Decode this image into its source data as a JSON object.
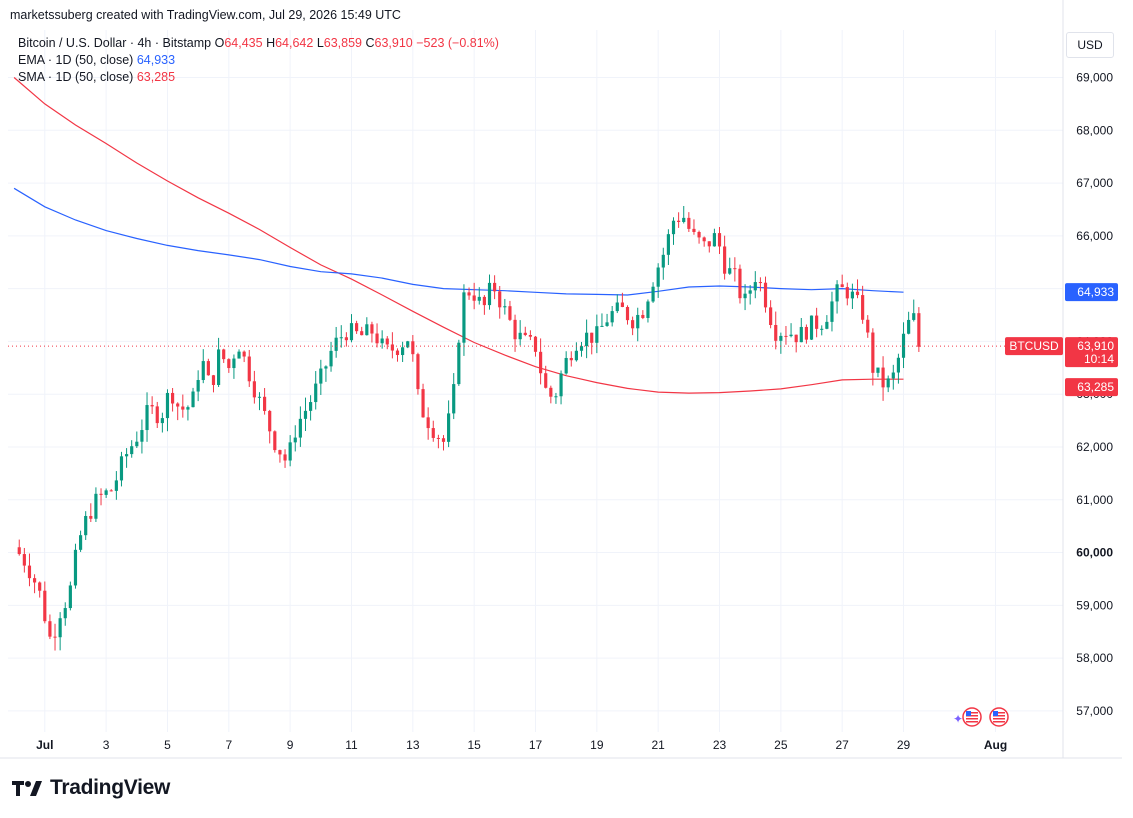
{
  "header": {
    "attribution": "marketssuberg created with TradingView.com, Jul 29, 2026 15:49 UTC"
  },
  "legend": {
    "symbol": "Bitcoin / U.S. Dollar · 4h · Bitstamp",
    "o_label": "O",
    "o": "64,435",
    "h_label": "H",
    "h": "64,642",
    "l_label": "L",
    "l": "63,859",
    "c_label": "C",
    "c": "63,910",
    "change": "−523 (−0.81%)",
    "ema_label": "EMA · 1D (50, close)",
    "ema_value": "64,933",
    "sma_label": "SMA · 1D (50, close)",
    "sma_value": "63,285"
  },
  "currency_button": "USD",
  "price_tags": {
    "ticker": "BTCUSD",
    "last": "63,910",
    "countdown": "10:14",
    "ema": "64,933",
    "sma": "63,285"
  },
  "brand": {
    "name": "TradingView"
  },
  "colors": {
    "up": "#089981",
    "down": "#f23645",
    "ema": "#2962ff",
    "sma": "#f23645",
    "grid": "#f0f3fa"
  },
  "chart_data": {
    "type": "candlestick",
    "y_axis": {
      "range": [
        56600,
        69900
      ],
      "ticks": [
        57000,
        58000,
        59000,
        60000,
        61000,
        62000,
        63000,
        64000,
        65000,
        66000,
        67000,
        68000,
        69000
      ],
      "tick_labels": [
        "57,000",
        "58,000",
        "59,000",
        "60,000",
        "61,000",
        "62,000",
        "63,000",
        "64,000",
        "65,000",
        "66,000",
        "67,000",
        "68,000",
        "69,000"
      ],
      "bold_ticks": [
        60000
      ]
    },
    "x_axis": {
      "range_days": [
        -0.2,
        34.2
      ],
      "ticks": [
        1,
        3,
        5,
        7,
        9,
        11,
        13,
        15,
        17,
        19,
        21,
        23,
        25,
        27,
        29,
        32
      ],
      "tick_labels": [
        "Jul",
        "3",
        "5",
        "7",
        "9",
        "11",
        "13",
        "15",
        "17",
        "19",
        "21",
        "23",
        "25",
        "27",
        "29",
        "Aug"
      ],
      "bold_labels": [
        "Jul",
        "Aug"
      ]
    },
    "grid": true,
    "ema_1d_50": [
      [
        0,
        66900
      ],
      [
        1,
        66550
      ],
      [
        2,
        66300
      ],
      [
        3,
        66100
      ],
      [
        4,
        65950
      ],
      [
        5,
        65820
      ],
      [
        6,
        65720
      ],
      [
        7,
        65640
      ],
      [
        8,
        65550
      ],
      [
        9,
        65420
      ],
      [
        10,
        65320
      ],
      [
        11,
        65280
      ],
      [
        12,
        65200
      ],
      [
        13,
        65080
      ],
      [
        14,
        65000
      ],
      [
        15,
        64980
      ],
      [
        16,
        64960
      ],
      [
        17,
        64930
      ],
      [
        18,
        64900
      ],
      [
        19,
        64890
      ],
      [
        20,
        64880
      ],
      [
        21,
        64950
      ],
      [
        22,
        65030
      ],
      [
        23,
        65050
      ],
      [
        24,
        65030
      ],
      [
        25,
        65000
      ],
      [
        26,
        64980
      ],
      [
        27,
        65000
      ],
      [
        28,
        64960
      ],
      [
        29,
        64933
      ]
    ],
    "sma_1d_50": [
      [
        0,
        69000
      ],
      [
        1,
        68500
      ],
      [
        2,
        68100
      ],
      [
        3,
        67750
      ],
      [
        4,
        67380
      ],
      [
        5,
        67040
      ],
      [
        6,
        66720
      ],
      [
        7,
        66430
      ],
      [
        8,
        66120
      ],
      [
        9,
        65780
      ],
      [
        10,
        65450
      ],
      [
        11,
        65180
      ],
      [
        12,
        64880
      ],
      [
        13,
        64570
      ],
      [
        14,
        64270
      ],
      [
        15,
        63980
      ],
      [
        16,
        63740
      ],
      [
        17,
        63520
      ],
      [
        18,
        63350
      ],
      [
        19,
        63220
      ],
      [
        20,
        63110
      ],
      [
        21,
        63040
      ],
      [
        22,
        63020
      ],
      [
        23,
        63030
      ],
      [
        24,
        63060
      ],
      [
        25,
        63100
      ],
      [
        26,
        63180
      ],
      [
        27,
        63270
      ],
      [
        28,
        63285
      ],
      [
        29,
        63285
      ]
    ],
    "close_path": [
      [
        0,
        60100
      ],
      [
        0.4,
        59800
      ],
      [
        0.8,
        59300
      ],
      [
        1.2,
        58300
      ],
      [
        1.5,
        58900
      ],
      [
        1.8,
        59200
      ],
      [
        2.1,
        60200
      ],
      [
        2.4,
        60700
      ],
      [
        2.7,
        61000
      ],
      [
        3.2,
        61200
      ],
      [
        3.6,
        61800
      ],
      [
        4,
        62200
      ],
      [
        4.4,
        62700
      ],
      [
        4.8,
        62600
      ],
      [
        5.1,
        63100
      ],
      [
        5.4,
        62700
      ],
      [
        5.8,
        62800
      ],
      [
        6.1,
        63700
      ],
      [
        6.4,
        63100
      ],
      [
        6.7,
        63800
      ],
      [
        7,
        63500
      ],
      [
        7.3,
        64000
      ],
      [
        7.6,
        63500
      ],
      [
        8.1,
        62700
      ],
      [
        8.5,
        62100
      ],
      [
        8.9,
        61700
      ],
      [
        9.2,
        62400
      ],
      [
        9.6,
        62800
      ],
      [
        10,
        63300
      ],
      [
        10.4,
        63900
      ],
      [
        10.8,
        64200
      ],
      [
        11.3,
        64100
      ],
      [
        11.7,
        64200
      ],
      [
        12.1,
        63800
      ],
      [
        12.5,
        63900
      ],
      [
        12.9,
        64100
      ],
      [
        13.2,
        62800
      ],
      [
        13.6,
        62400
      ],
      [
        14,
        62100
      ],
      [
        14.3,
        62800
      ],
      [
        14.6,
        64800
      ],
      [
        14.9,
        65000
      ],
      [
        15.3,
        64600
      ],
      [
        15.6,
        65100
      ],
      [
        15.9,
        64700
      ],
      [
        16.3,
        64200
      ],
      [
        16.6,
        64000
      ],
      [
        17,
        63900
      ],
      [
        17.3,
        63100
      ],
      [
        17.6,
        62900
      ],
      [
        17.9,
        63500
      ],
      [
        18.3,
        64000
      ],
      [
        18.6,
        64100
      ],
      [
        19,
        64100
      ],
      [
        19.4,
        64500
      ],
      [
        19.8,
        64600
      ],
      [
        20.2,
        64400
      ],
      [
        20.5,
        64600
      ],
      [
        20.9,
        65300
      ],
      [
        21.2,
        65700
      ],
      [
        21.5,
        66300
      ],
      [
        21.8,
        66400
      ],
      [
        22.1,
        66000
      ],
      [
        22.5,
        65800
      ],
      [
        22.9,
        66000
      ],
      [
        23.2,
        65400
      ],
      [
        23.5,
        65200
      ],
      [
        23.8,
        64700
      ],
      [
        24.2,
        65300
      ],
      [
        24.5,
        64800
      ],
      [
        24.8,
        64200
      ],
      [
        25.2,
        64200
      ],
      [
        25.6,
        64100
      ],
      [
        26,
        64300
      ],
      [
        26.4,
        64400
      ],
      [
        26.8,
        64900
      ],
      [
        27.1,
        65000
      ],
      [
        27.4,
        64800
      ],
      [
        27.7,
        64500
      ],
      [
        28,
        63500
      ],
      [
        28.3,
        63200
      ],
      [
        28.6,
        63200
      ],
      [
        28.9,
        63800
      ],
      [
        29.1,
        64300
      ],
      [
        29.35,
        64435
      ],
      [
        29.5,
        63910
      ]
    ]
  }
}
